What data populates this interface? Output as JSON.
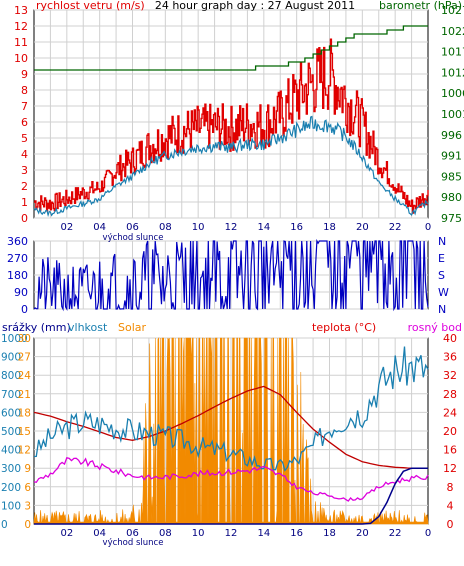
{
  "colors": {
    "red": "#e00000",
    "dark_red": "#c00000",
    "blue": "#1a7fb0",
    "dark_blue": "#0000c0",
    "navy": "#00008b",
    "green": "#006600",
    "orange": "#f28a00",
    "magenta": "#dd00dd",
    "grid": "#d0d0d0"
  },
  "chart_data": [
    {
      "type": "line",
      "title": "24 hour graph day : 27 August 2011",
      "ylabel": "rychlost vetru (m/s)",
      "y2label": "barometr (hPa)",
      "xticks": [
        "02",
        "04",
        "06",
        "08",
        "10",
        "12",
        "14",
        "16",
        "18",
        "20",
        "22",
        "0"
      ],
      "xnote": "východ slunce",
      "ylim": [
        0,
        13
      ],
      "yticks": [
        0,
        1,
        2,
        3,
        4,
        5,
        6,
        7,
        8,
        9,
        10,
        11,
        12,
        13
      ],
      "y2lim": [
        975,
        1027
      ],
      "y2ticks": [
        975,
        980,
        985,
        991,
        996,
        1001,
        1006,
        1012,
        1017,
        1022,
        1027
      ],
      "xlim": [
        0,
        24
      ],
      "grid": true,
      "series": [
        {
          "color_key": "red",
          "x": [
            0,
            1,
            2,
            3,
            4,
            5,
            6,
            7,
            8,
            9,
            10,
            11,
            12,
            13,
            14,
            15,
            16,
            17,
            18,
            19,
            20,
            21,
            22,
            23,
            24
          ],
          "y": [
            1.0,
            0.9,
            1.2,
            1.6,
            1.9,
            3.0,
            3.6,
            4.5,
            5.0,
            5.4,
            5.6,
            5.7,
            5.6,
            5.9,
            5.8,
            6.4,
            7.6,
            8.5,
            9.0,
            7.4,
            5.8,
            3.6,
            2.0,
            0.7,
            1.5
          ]
        },
        {
          "color_key": "blue",
          "x": [
            0,
            1,
            2,
            3,
            4,
            5,
            6,
            7,
            8,
            9,
            10,
            11,
            12,
            13,
            14,
            15,
            16,
            17,
            18,
            19,
            20,
            21,
            22,
            23,
            24
          ],
          "y": [
            0.5,
            0.3,
            0.6,
            0.9,
            1.2,
            2.0,
            2.6,
            3.4,
            3.9,
            4.2,
            4.4,
            4.5,
            4.4,
            4.6,
            4.6,
            5.0,
            5.5,
            5.9,
            5.8,
            5.1,
            3.8,
            2.2,
            1.2,
            0.3,
            1.0
          ]
        },
        {
          "color_key": "green",
          "axis": "y2",
          "x": [
            0,
            1,
            2,
            3,
            4,
            5,
            6,
            7,
            8,
            9,
            10,
            11,
            12,
            13,
            14,
            15,
            16,
            17,
            18,
            19,
            20,
            21,
            22,
            23,
            24
          ],
          "y": [
            1012,
            1012,
            1012,
            1012,
            1012,
            1012,
            1012,
            1012,
            1012,
            1012,
            1012,
            1012,
            1012,
            1012,
            1013,
            1013,
            1014,
            1016,
            1018,
            1020,
            1021,
            1021,
            1022,
            1023,
            1023
          ]
        }
      ]
    },
    {
      "type": "line",
      "ylim": [
        0,
        360
      ],
      "yticks": [
        0,
        90,
        180,
        270,
        360
      ],
      "y2ticks": [
        "N",
        "W",
        "S",
        "E",
        "N"
      ],
      "xlim": [
        0,
        24
      ],
      "grid": true,
      "series": [
        {
          "color_key": "dark_blue",
          "x": [
            0,
            1,
            2,
            3,
            4,
            5,
            6,
            7,
            8,
            9,
            10,
            11,
            12,
            13,
            14,
            15,
            16,
            17,
            18,
            19,
            20,
            21,
            22,
            23,
            23.3,
            23.6,
            24
          ],
          "y": [
            100,
            90,
            80,
            85,
            100,
            110,
            120,
            130,
            140,
            145,
            150,
            155,
            160,
            170,
            190,
            210,
            240,
            280,
            300,
            305,
            310,
            315,
            320,
            330,
            250,
            320,
            10
          ]
        }
      ]
    },
    {
      "type": "line",
      "xticks": [
        "02",
        "04",
        "06",
        "08",
        "10",
        "12",
        "14",
        "16",
        "18",
        "20",
        "22",
        "0"
      ],
      "xnote": "východ slunce",
      "xlim": [
        0,
        24
      ],
      "labels": {
        "rain": "srážky (mm)",
        "humidity": "vlhkost",
        "solar": "Solar",
        "temp": "teplota (°C)",
        "dew": "rosný bod"
      },
      "left_ticks_rain": [
        0,
        3,
        6,
        9,
        12,
        15,
        18,
        21,
        24,
        27,
        30
      ],
      "left_ticks_humidity": [
        0,
        10,
        20,
        30,
        40,
        50,
        60,
        70,
        80,
        90,
        100
      ],
      "left_ticks_solar": [
        0,
        100,
        200,
        300,
        400,
        500,
        600,
        700,
        800,
        900,
        1000
      ],
      "right_ticks_temp": [
        0,
        4,
        8,
        12,
        16,
        20,
        24,
        28,
        32,
        36,
        40
      ],
      "grid": true,
      "series": [
        {
          "name": "teplota (°C)",
          "color_key": "dark_red",
          "x": [
            0,
            1,
            2,
            3,
            4,
            5,
            6,
            7,
            8,
            9,
            10,
            11,
            12,
            13,
            14,
            15,
            16,
            17,
            18,
            19,
            20,
            21,
            22,
            23,
            24
          ],
          "y": [
            24.0,
            23.2,
            22.0,
            21.0,
            19.8,
            18.6,
            18.0,
            18.8,
            20.0,
            21.6,
            23.3,
            25.2,
            27.0,
            28.6,
            29.6,
            27.8,
            24.0,
            20.4,
            17.6,
            15.0,
            13.4,
            12.6,
            12.2,
            12.0,
            12.0
          ]
        },
        {
          "name": "vlhkost",
          "color_key": "blue",
          "x": [
            0,
            1,
            2,
            3,
            4,
            5,
            6,
            7,
            8,
            9,
            10,
            11,
            12,
            13,
            14,
            15,
            16,
            17,
            18,
            19,
            20,
            21,
            22,
            23,
            24
          ],
          "y": [
            38,
            47,
            52,
            55,
            54,
            52,
            50,
            49,
            47,
            45,
            42,
            40,
            38,
            35,
            32,
            31,
            34,
            42,
            52,
            57,
            60,
            74,
            83,
            85,
            83
          ]
        },
        {
          "name": "rosný bod",
          "color_key": "magenta",
          "x": [
            0,
            1,
            2,
            3,
            4,
            5,
            6,
            7,
            8,
            9,
            10,
            11,
            12,
            13,
            14,
            15,
            16,
            17,
            18,
            19,
            20,
            21,
            22,
            23,
            24
          ],
          "y": [
            9.0,
            10.8,
            13.6,
            13.4,
            12.4,
            11.4,
            10.4,
            10.0,
            10.1,
            10.4,
            10.8,
            11.0,
            11.2,
            11.5,
            12.0,
            10.5,
            8.0,
            6.6,
            6.2,
            5.2,
            5.6,
            8.0,
            9.2,
            9.8,
            10.0
          ]
        },
        {
          "name": "Solar",
          "color_key": "orange",
          "type": "area",
          "x": [
            0,
            5,
            6,
            6.5,
            7,
            8,
            9,
            10,
            11,
            11.5,
            12,
            12.5,
            13,
            13.5,
            14,
            14.5,
            15,
            15.5,
            16,
            16.5,
            17,
            18,
            24
          ],
          "y": [
            10,
            10,
            12,
            60,
            140,
            300,
            420,
            560,
            650,
            700,
            710,
            720,
            710,
            690,
            640,
            560,
            430,
            300,
            150,
            70,
            20,
            10,
            10
          ]
        },
        {
          "name": "srážky (mm)",
          "color_key": "navy",
          "x": [
            0,
            19,
            20,
            20.5,
            21,
            21.5,
            22,
            22.5,
            23,
            24
          ],
          "y": [
            0,
            0,
            0,
            0.1,
            1.2,
            3.5,
            6.5,
            8.5,
            9.0,
            9.0
          ]
        }
      ]
    }
  ]
}
